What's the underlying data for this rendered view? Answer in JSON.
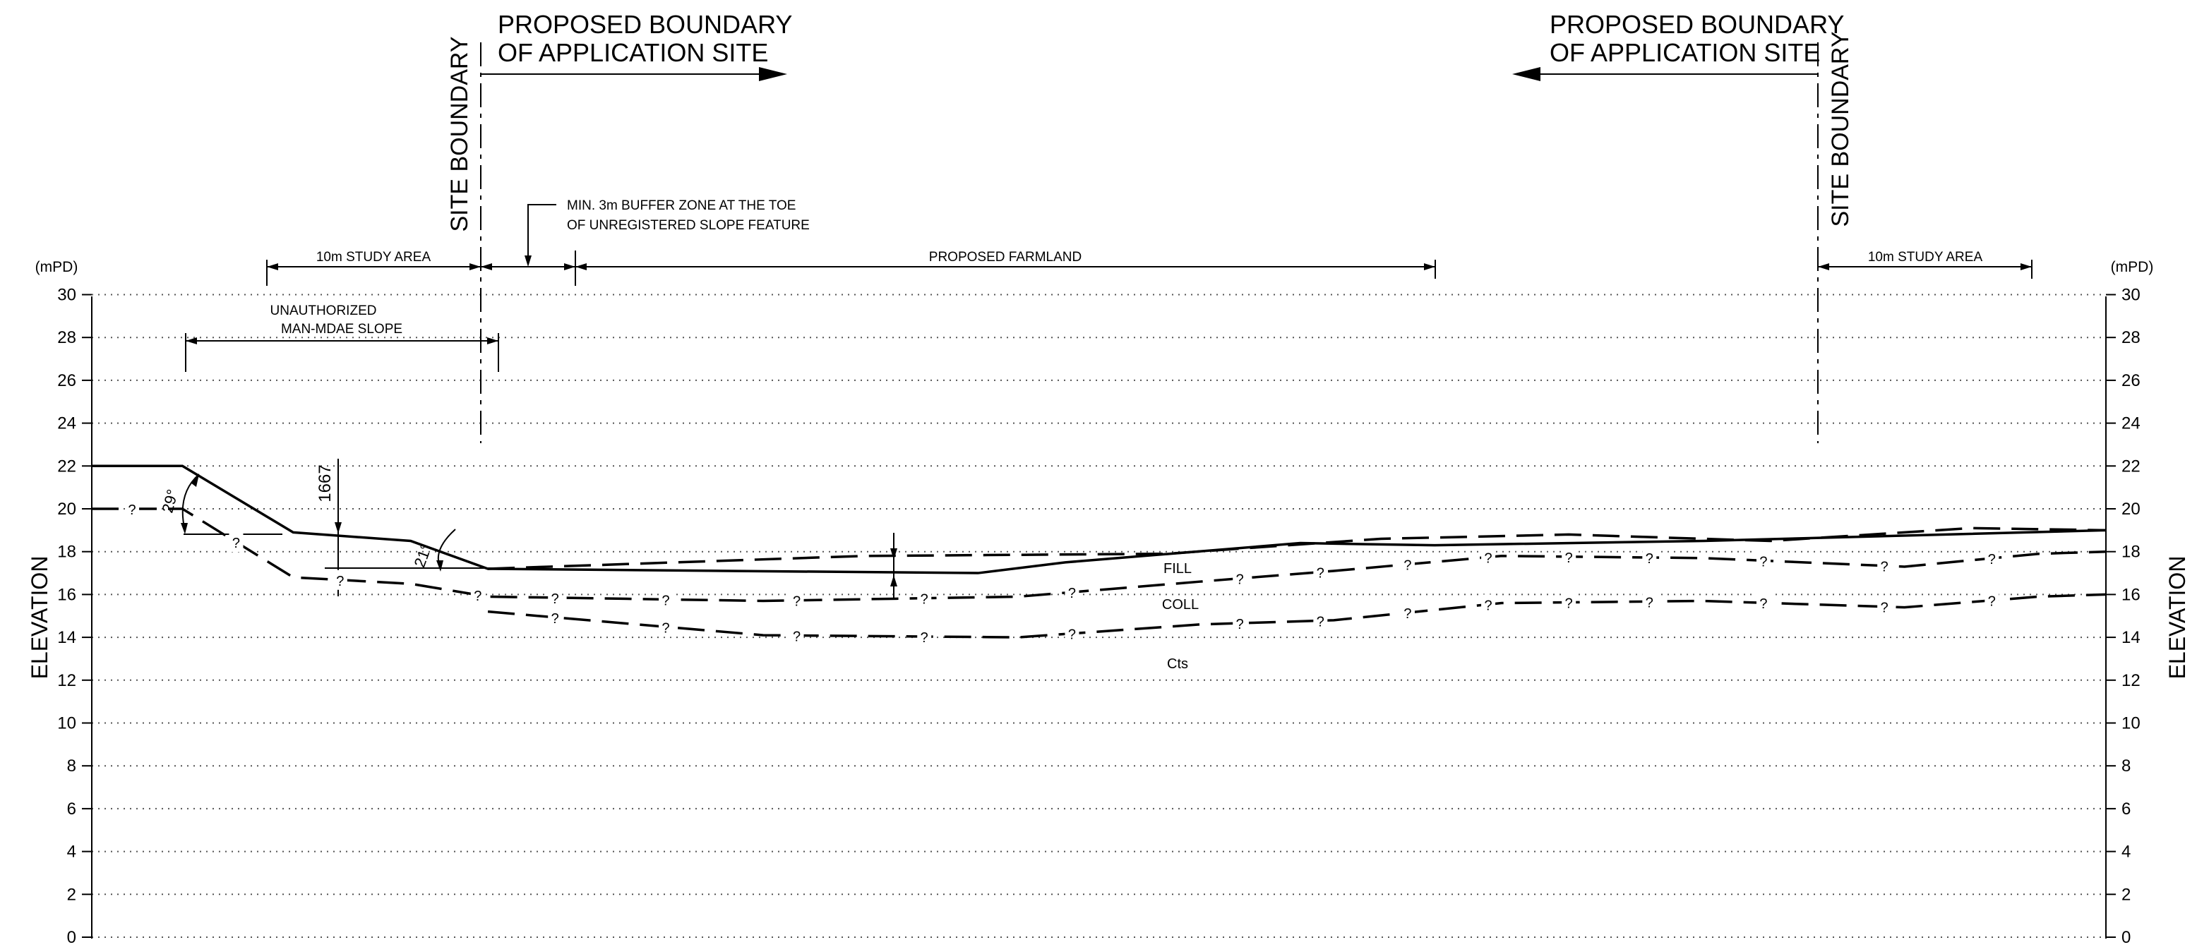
{
  "axis": {
    "unit_label": "(mPD)",
    "title": "ELEVATION",
    "ticks": [
      "0",
      "2",
      "4",
      "6",
      "8",
      "10",
      "12",
      "14",
      "16",
      "18",
      "20",
      "22",
      "24",
      "26",
      "28",
      "30"
    ]
  },
  "boundaries": {
    "site_boundary_left": "SITE BOUNDARY",
    "site_boundary_right": "SITE BOUNDARY",
    "proposed_left_line1": "PROPOSED BOUNDARY",
    "proposed_left_line2": "OF APPLICATION SITE",
    "proposed_right_line1": "PROPOSED BOUNDARY",
    "proposed_right_line2": "OF APPLICATION SITE"
  },
  "dimensions": {
    "study_area_left": "10m STUDY AREA",
    "study_area_right": "10m STUDY AREA",
    "proposed_farmland": "PROPOSED FARMLAND",
    "buffer_line1": "MIN. 3m BUFFER ZONE AT THE TOE",
    "buffer_line2": "OF UNREGISTERED SLOPE FEATURE",
    "slope_line1": "UNAUTHORIZED",
    "slope_line2": "MAN-MDAE SLOPE",
    "height_1667": "1667"
  },
  "angles": {
    "a1": "29°",
    "a2": "21°"
  },
  "strata": {
    "fill": "FILL",
    "coll": "COLL",
    "cts": "Cts",
    "uncertain": "?"
  },
  "profiles": {
    "existing_ground": [
      [
        0,
        22
      ],
      [
        135,
        22
      ],
      [
        300,
        18.9
      ],
      [
        475,
        18.5
      ],
      [
        590,
        17.2
      ],
      [
        1320,
        17.0
      ],
      [
        1450,
        17.5
      ],
      [
        1800,
        18.4
      ],
      [
        2000,
        18.3
      ],
      [
        2400,
        18.5
      ],
      [
        3000,
        19.0
      ]
    ],
    "proposed_ground": [
      [
        590,
        17.2
      ],
      [
        1150,
        17.8
      ],
      [
        1600,
        17.9
      ],
      [
        1920,
        18.6
      ],
      [
        2200,
        18.8
      ],
      [
        2500,
        18.5
      ],
      [
        2800,
        19.1
      ],
      [
        3000,
        19.0
      ]
    ],
    "fill_bottom": [
      [
        0,
        20
      ],
      [
        135,
        20
      ],
      [
        300,
        16.8
      ],
      [
        475,
        16.5
      ],
      [
        590,
        15.9
      ],
      [
        1000,
        15.7
      ],
      [
        1380,
        15.9
      ],
      [
        1650,
        16.6
      ],
      [
        1850,
        17.1
      ],
      [
        2100,
        17.8
      ],
      [
        2400,
        17.7
      ],
      [
        2700,
        17.3
      ],
      [
        2900,
        17.9
      ],
      [
        3000,
        18.0
      ]
    ],
    "coll_bottom": [
      [
        590,
        15.2
      ],
      [
        1000,
        14.1
      ],
      [
        1380,
        14.0
      ],
      [
        1650,
        14.6
      ],
      [
        1850,
        14.8
      ],
      [
        2100,
        15.6
      ],
      [
        2400,
        15.7
      ],
      [
        2700,
        15.4
      ],
      [
        2900,
        15.9
      ],
      [
        3000,
        16.0
      ]
    ]
  }
}
